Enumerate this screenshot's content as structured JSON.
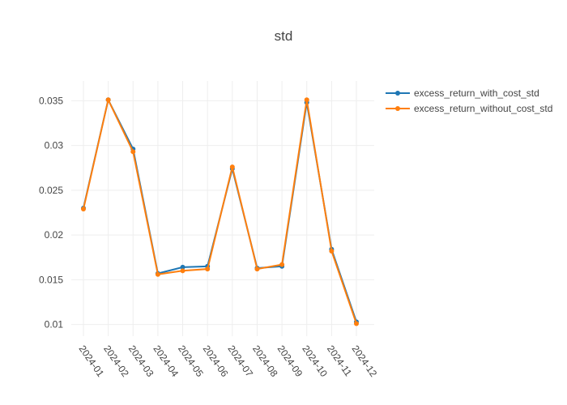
{
  "chart_data": {
    "type": "line",
    "title": "std",
    "xlabel": "",
    "ylabel": "",
    "categories": [
      "2024-01",
      "2024-02",
      "2024-03",
      "2024-04",
      "2024-05",
      "2024-06",
      "2024-07",
      "2024-08",
      "2024-09",
      "2024-10",
      "2024-11",
      "2024-12"
    ],
    "ylim": [
      0.0087,
      0.0372
    ],
    "yticks": [
      0.01,
      0.015,
      0.02,
      0.025,
      0.03,
      0.035
    ],
    "ytick_labels": [
      "0.01",
      "0.015",
      "0.02",
      "0.025",
      "0.03",
      "0.035"
    ],
    "grid": true,
    "legend_position": "top-right",
    "series": [
      {
        "name": "excess_return_with_cost_std",
        "color": "#1f77b4",
        "values": [
          0.023,
          0.0351,
          0.0296,
          0.0157,
          0.0164,
          0.0165,
          0.0274,
          0.0163,
          0.0165,
          0.0348,
          0.0184,
          0.0103
        ]
      },
      {
        "name": "excess_return_without_cost_std",
        "color": "#ff7f0e",
        "values": [
          0.0229,
          0.0351,
          0.0293,
          0.0156,
          0.016,
          0.0162,
          0.0276,
          0.0162,
          0.0167,
          0.0351,
          0.0182,
          0.0101
        ]
      }
    ]
  }
}
